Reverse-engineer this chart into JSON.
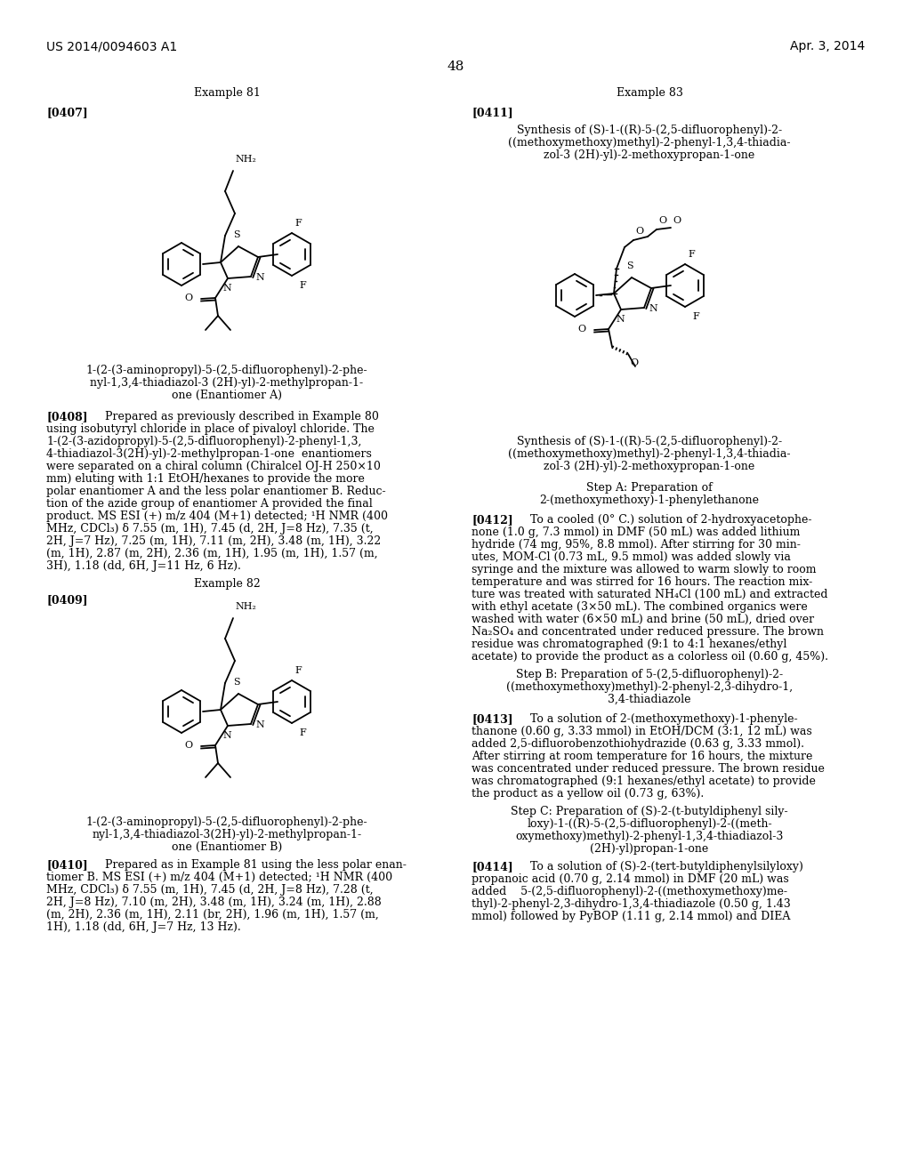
{
  "page_number": "48",
  "header_left": "US 2014/0094603 A1",
  "header_right": "Apr. 3, 2014",
  "background_color": "#ffffff",
  "text_color": "#000000",
  "example81_title": "Example 81",
  "example82_title": "Example 82",
  "example83_title": "Example 83",
  "para0407_label": "[0407]",
  "para0408_label": "[0408]",
  "para0409_label": "[0409]",
  "para0410_label": "[0410]",
  "para0411_label": "[0411]",
  "para0412_label": "[0412]",
  "para0413_label": "[0413]",
  "para0414_label": "[0414]",
  "compound81_name_l1": "1-(2-(3-aminopropyl)-5-(2,5-difluorophenyl)-2-phe-",
  "compound81_name_l2": "nyl-1,3,4-thiadiazol-3 (2H)-yl)-2-methylpropan-1-",
  "compound81_name_l3": "one (Enantiomer A)",
  "compound82_name_l1": "1-(2-(3-aminopropyl)-5-(2,5-difluorophenyl)-2-phe-",
  "compound82_name_l2": "nyl-1,3,4-thiadiazol-3(2H)-yl)-2-methylpropan-1-",
  "compound82_name_l3": "one (Enantiomer B)",
  "example83_sub_l1": "Synthesis of (S)-1-((R)-5-(2,5-difluorophenyl)-2-",
  "example83_sub_l2": "((methoxymethoxy)methyl)-2-phenyl-1,3,4-thiadia-",
  "example83_sub_l3": "zol-3 (2H)-yl)-2-methoxypropan-1-one",
  "stepA_l1": "Step A: Preparation of",
  "stepA_l2": "2-(methoxymethoxy)-1-phenylethanone",
  "stepB_l1": "Step B: Preparation of 5-(2,5-difluorophenyl)-2-",
  "stepB_l2": "((methoxymethoxy)methyl)-2-phenyl-2,3-dihydro-1,",
  "stepB_l3": "3,4-thiadiazole",
  "stepC_l1": "Step C: Preparation of (S)-2-(t-butyldiphenyl sily-",
  "stepC_l2": "loxy)-1-((R)-5-(2,5-difluorophenyl)-2-((meth-",
  "stepC_l3": "oxymethoxy)methyl)-2-phenyl-1,3,4-thiadiazol-3",
  "stepC_l4": "(2H)-yl)propan-1-one",
  "p408_l01": "Prepared as previously described in Example 80",
  "p408_l02": "using isobutyryl chloride in place of pivaloyl chloride. The",
  "p408_l03": "1-(2-(3-azidopropyl)-5-(2,5-difluorophenyl)-2-phenyl-1,3,",
  "p408_l04": "4-thiadiazol-3(2H)-yl)-2-methylpropan-1-one  enantiomers",
  "p408_l05": "were separated on a chiral column (Chiralcel OJ-H 250×10",
  "p408_l06": "mm) eluting with 1:1 EtOH/hexanes to provide the more",
  "p408_l07": "polar enantiomer A and the less polar enantiomer B. Reduc-",
  "p408_l08": "tion of the azide group of enantiomer A provided the final",
  "p408_l09": "product. MS ESI (+) m/z 404 (M+1) detected; ¹H NMR (400",
  "p408_l10": "MHz, CDCl₃) δ 7.55 (m, 1H), 7.45 (d, 2H, J=8 Hz), 7.35 (t,",
  "p408_l11": "2H, J=7 Hz), 7.25 (m, 1H), 7.11 (m, 2H), 3.48 (m, 1H), 3.22",
  "p408_l12": "(m, 1H), 2.87 (m, 2H), 2.36 (m, 1H), 1.95 (m, 1H), 1.57 (m,",
  "p408_l13": "3H), 1.18 (dd, 6H, J=11 Hz, 6 Hz).",
  "p410_l01": "Prepared as in Example 81 using the less polar enan-",
  "p410_l02": "tiomer B. MS ESI (+) m/z 404 (M+1) detected; ¹H NMR (400",
  "p410_l03": "MHz, CDCl₃) δ 7.55 (m, 1H), 7.45 (d, 2H, J=8 Hz), 7.28 (t,",
  "p410_l04": "2H, J=8 Hz), 7.10 (m, 2H), 3.48 (m, 1H), 3.24 (m, 1H), 2.88",
  "p410_l05": "(m, 2H), 2.36 (m, 1H), 2.11 (br, 2H), 1.96 (m, 1H), 1.57 (m,",
  "p410_l06": "1H), 1.18 (dd, 6H, J=7 Hz, 13 Hz).",
  "p412_l01": "To a cooled (0° C.) solution of 2-hydroxyacetophe-",
  "p412_l02": "none (1.0 g, 7.3 mmol) in DMF (50 mL) was added lithium",
  "p412_l03": "hydride (74 mg, 95%, 8.8 mmol). After stirring for 30 min-",
  "p412_l04": "utes, MOM-Cl (0.73 mL, 9.5 mmol) was added slowly via",
  "p412_l05": "syringe and the mixture was allowed to warm slowly to room",
  "p412_l06": "temperature and was stirred for 16 hours. The reaction mix-",
  "p412_l07": "ture was treated with saturated NH₄Cl (100 mL) and extracted",
  "p412_l08": "with ethyl acetate (3×50 mL). The combined organics were",
  "p412_l09": "washed with water (6×50 mL) and brine (50 mL), dried over",
  "p412_l10": "Na₂SO₄ and concentrated under reduced pressure. The brown",
  "p412_l11": "residue was chromatographed (9:1 to 4:1 hexanes/ethyl",
  "p412_l12": "acetate) to provide the product as a colorless oil (0.60 g, 45%).",
  "p413_l01": "To a solution of 2-(methoxymethoxy)-1-phenyle-",
  "p413_l02": "thanone (0.60 g, 3.33 mmol) in EtOH/DCM (3:1, 12 mL) was",
  "p413_l03": "added 2,5-difluorobenzothiohydrazide (0.63 g, 3.33 mmol).",
  "p413_l04": "After stirring at room temperature for 16 hours, the mixture",
  "p413_l05": "was concentrated under reduced pressure. The brown residue",
  "p413_l06": "was chromatographed (9:1 hexanes/ethyl acetate) to provide",
  "p413_l07": "the product as a yellow oil (0.73 g, 63%).",
  "p414_l01": "To a solution of (S)-2-(tert-butyldiphenylsilyloxy)",
  "p414_l02": "propanoic acid (0.70 g, 2.14 mmol) in DMF (20 mL) was",
  "p414_l03": "added    5-(2,5-difluorophenyl)-2-((methoxymethoxy)me-",
  "p414_l04": "thyl)-2-phenyl-2,3-dihydro-1,3,4-thiadiazole (0.50 g, 1.43",
  "p414_l05": "mmol) followed by PyBOP (1.11 g, 2.14 mmol) and DIEA"
}
